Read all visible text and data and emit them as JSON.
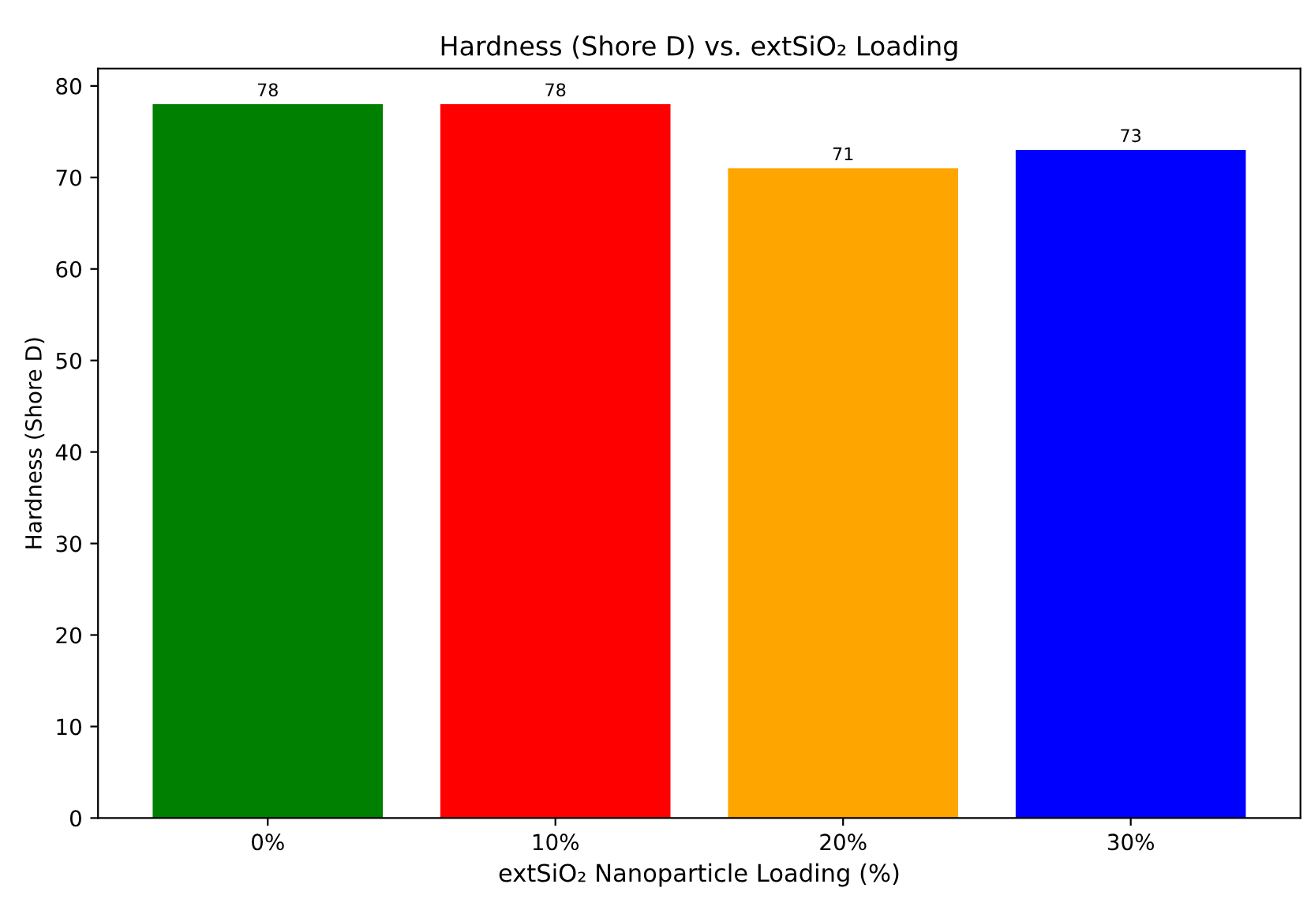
{
  "chart_data": {
    "type": "bar",
    "title": "Hardness (Shore D) vs. extSiO₂ Loading",
    "xlabel": "extSiO₂ Nanoparticle Loading (%)",
    "ylabel": "Hardness (Shore D)",
    "categories": [
      "0%",
      "10%",
      "20%",
      "30%"
    ],
    "values": [
      78,
      78,
      71,
      73
    ],
    "colors": [
      "#008000",
      "#ff0000",
      "#ffa500",
      "#0000ff"
    ],
    "ylim": [
      0,
      81.9
    ],
    "yticks": [
      0,
      10,
      20,
      30,
      40,
      50,
      60,
      70,
      80
    ],
    "data_labels": true,
    "grid": false,
    "legend": false
  }
}
